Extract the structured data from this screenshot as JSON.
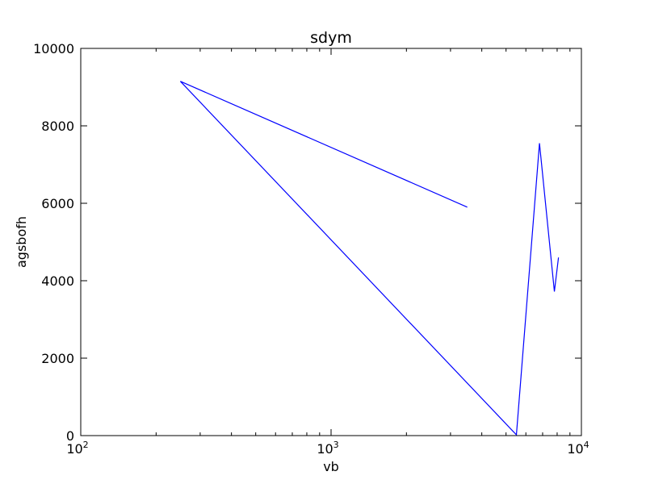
{
  "chart_data": {
    "type": "line",
    "title": "sdym",
    "xlabel": "vb",
    "ylabel": "agsbofh",
    "xscale": "log",
    "xlim": [
      100,
      10000
    ],
    "ylim": [
      0,
      10000
    ],
    "x_ticks": [
      {
        "value": 100,
        "base": "10",
        "exp": "2"
      },
      {
        "value": 1000,
        "base": "10",
        "exp": "3"
      },
      {
        "value": 10000,
        "base": "10",
        "exp": "4"
      }
    ],
    "y_ticks": [
      {
        "value": 0,
        "label": "0"
      },
      {
        "value": 2000,
        "label": "2000"
      },
      {
        "value": 4000,
        "label": "4000"
      },
      {
        "value": 6000,
        "label": "6000"
      },
      {
        "value": 8000,
        "label": "8000"
      },
      {
        "value": 10000,
        "label": "10000"
      }
    ],
    "grid": false,
    "series": [
      {
        "color": "#0000ff",
        "x": [
          3500,
          250,
          5500,
          6800,
          7800,
          8100
        ],
        "y": [
          5900,
          9150,
          20,
          7550,
          3720,
          4600
        ]
      }
    ]
  }
}
